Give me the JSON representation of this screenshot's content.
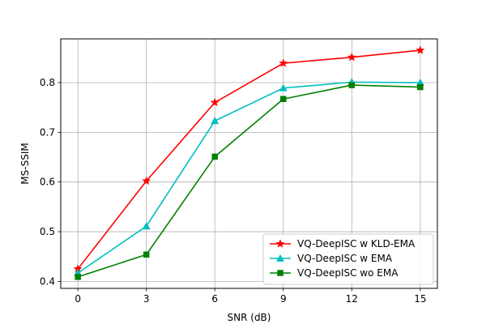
{
  "chart_data": {
    "type": "line",
    "title": "",
    "xlabel": "SNR (dB)",
    "ylabel": "MS-SSIM",
    "x": [
      0,
      3,
      6,
      9,
      12,
      15
    ],
    "xticks": [
      0,
      3,
      6,
      9,
      12,
      15
    ],
    "yticks": [
      0.4,
      0.5,
      0.6,
      0.7,
      0.8
    ],
    "xticklabels": [
      "0",
      "3",
      "6",
      "9",
      "12",
      "15"
    ],
    "yticklabels": [
      "0.4",
      "0.5",
      "0.6",
      "0.7",
      "0.8"
    ],
    "xlim": [
      -0.75,
      15.75
    ],
    "ylim": [
      0.386,
      0.888
    ],
    "grid": true,
    "legend_position": "lower-right",
    "series": [
      {
        "name": "VQ-DeepISC w KLD-EMA",
        "color": "#ff0000",
        "marker": "star",
        "values": [
          0.425,
          0.602,
          0.76,
          0.839,
          0.851,
          0.865
        ]
      },
      {
        "name": "VQ-DeepISC w EMA",
        "color": "#00bfbf",
        "marker": "triangle",
        "values": [
          0.417,
          0.511,
          0.723,
          0.789,
          0.801,
          0.8
        ]
      },
      {
        "name": "VQ-DeepISC wo EMA",
        "color": "#008000",
        "marker": "square",
        "values": [
          0.409,
          0.454,
          0.651,
          0.767,
          0.795,
          0.791
        ]
      }
    ]
  }
}
